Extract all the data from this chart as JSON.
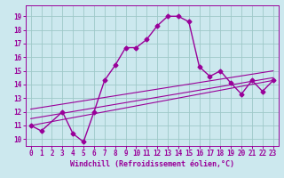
{
  "xlabel": "Windchill (Refroidissement éolien,°C)",
  "background_color": "#cce8ee",
  "line_color": "#990099",
  "xlim": [
    -0.5,
    23.5
  ],
  "ylim": [
    9.5,
    19.8
  ],
  "xticks": [
    0,
    1,
    2,
    3,
    4,
    5,
    6,
    7,
    8,
    9,
    10,
    11,
    12,
    13,
    14,
    15,
    16,
    17,
    18,
    19,
    20,
    21,
    22,
    23
  ],
  "yticks": [
    10,
    11,
    12,
    13,
    14,
    15,
    16,
    17,
    18,
    19
  ],
  "curve1_x": [
    0,
    1,
    3,
    4,
    5,
    6,
    7,
    8,
    9,
    10,
    11,
    12,
    13,
    14,
    15,
    16,
    17,
    18,
    19,
    20,
    21,
    22,
    23
  ],
  "curve1_y": [
    11.0,
    10.6,
    12.0,
    10.4,
    9.8,
    12.0,
    14.3,
    15.4,
    16.7,
    16.7,
    17.3,
    18.3,
    19.0,
    19.0,
    18.6,
    15.3,
    14.6,
    15.0,
    14.1,
    13.3,
    14.3,
    13.5,
    14.3
  ],
  "line2_x": [
    0,
    23
  ],
  "line2_y": [
    11.0,
    14.3
  ],
  "line3_x": [
    0,
    23
  ],
  "line3_y": [
    11.5,
    14.5
  ],
  "line4_x": [
    0,
    23
  ],
  "line4_y": [
    12.2,
    15.0
  ],
  "grid_color": "#9ec8c8",
  "xlabel_fontsize": 6,
  "tick_fontsize": 5.5,
  "linewidth": 1.0,
  "markersize": 2.5
}
